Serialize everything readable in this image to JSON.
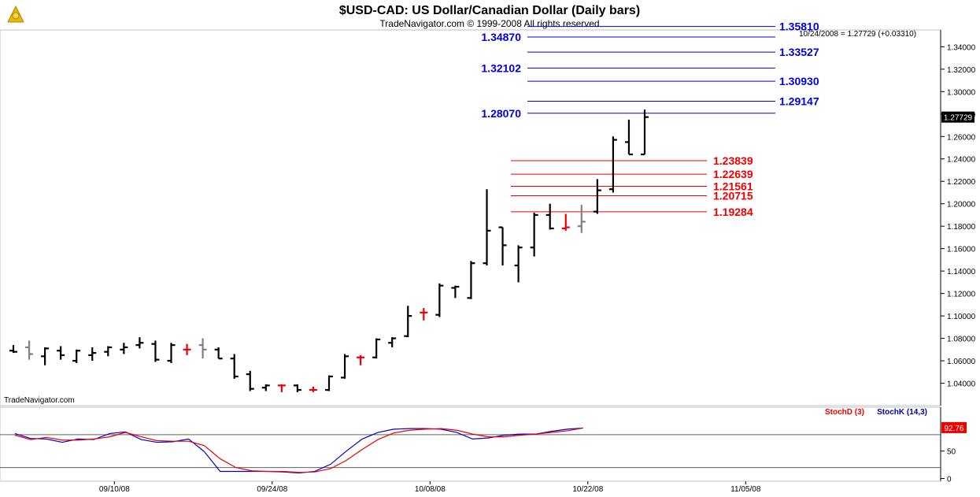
{
  "header": {
    "title": "$USD-CAD:  US Dollar/Canadian Dollar  (Daily bars)",
    "subtitle": "TradeNavigator.com © 1999-2008 All rights reserved",
    "last_bar_info": "10/24/2008 = 1.27729 (+0.03310)",
    "watermark": "TradeNavigator.com"
  },
  "colors": {
    "up_bar": "#000000",
    "down_bar": "#000000",
    "red_bar": "#ee0000",
    "gray_bar": "#808080",
    "resistance": "#0000dd",
    "support": "#ee0000",
    "stoch_k": "#0000cc",
    "stoch_d": "#ee0000"
  },
  "chart_data": [
    {
      "type": "ohlc",
      "title": "$USD-CAD:  US Dollar/Canadian Dollar  (Daily bars)",
      "ylim": [
        1.02,
        1.355
      ],
      "y_ticks": [
        "1.34000",
        "1.32000",
        "1.30000",
        "1.28000",
        "1.26000",
        "1.24000",
        "1.22000",
        "1.20000",
        "1.18000",
        "1.16000",
        "1.14000",
        "1.12000",
        "1.10000",
        "1.08000",
        "1.06000",
        "1.04000"
      ],
      "x_ticks": [
        "09/10/08",
        "09/24/08",
        "10/08/08",
        "10/22/08",
        "11/05/08"
      ],
      "last_price": "1.27729",
      "bars": [
        {
          "o": 1.069,
          "h": 1.074,
          "l": 1.067,
          "c": 1.068,
          "color": "black"
        },
        {
          "o": 1.072,
          "h": 1.078,
          "l": 1.061,
          "c": 1.066,
          "color": "gray"
        },
        {
          "o": 1.064,
          "h": 1.072,
          "l": 1.056,
          "c": 1.071,
          "color": "black"
        },
        {
          "o": 1.069,
          "h": 1.073,
          "l": 1.061,
          "c": 1.065,
          "color": "black"
        },
        {
          "o": 1.06,
          "h": 1.07,
          "l": 1.058,
          "c": 1.069,
          "color": "black"
        },
        {
          "o": 1.065,
          "h": 1.072,
          "l": 1.06,
          "c": 1.067,
          "color": "black"
        },
        {
          "o": 1.068,
          "h": 1.073,
          "l": 1.064,
          "c": 1.072,
          "color": "black"
        },
        {
          "o": 1.07,
          "h": 1.076,
          "l": 1.066,
          "c": 1.072,
          "color": "black"
        },
        {
          "o": 1.074,
          "h": 1.081,
          "l": 1.071,
          "c": 1.076,
          "color": "black"
        },
        {
          "o": 1.075,
          "h": 1.078,
          "l": 1.059,
          "c": 1.061,
          "color": "black"
        },
        {
          "o": 1.06,
          "h": 1.076,
          "l": 1.058,
          "c": 1.074,
          "color": "black"
        },
        {
          "o": 1.07,
          "h": 1.075,
          "l": 1.065,
          "c": 1.07,
          "color": "red"
        },
        {
          "o": 1.074,
          "h": 1.08,
          "l": 1.062,
          "c": 1.07,
          "color": "gray"
        },
        {
          "o": 1.07,
          "h": 1.072,
          "l": 1.062,
          "c": 1.062,
          "color": "black"
        },
        {
          "o": 1.062,
          "h": 1.066,
          "l": 1.044,
          "c": 1.046,
          "color": "black"
        },
        {
          "o": 1.048,
          "h": 1.051,
          "l": 1.033,
          "c": 1.035,
          "color": "black"
        },
        {
          "o": 1.036,
          "h": 1.039,
          "l": 1.033,
          "c": 1.038,
          "color": "black"
        },
        {
          "o": 1.038,
          "h": 1.039,
          "l": 1.032,
          "c": 1.038,
          "color": "red"
        },
        {
          "o": 1.038,
          "h": 1.039,
          "l": 1.032,
          "c": 1.034,
          "color": "black"
        },
        {
          "o": 1.034,
          "h": 1.037,
          "l": 1.032,
          "c": 1.034,
          "color": "red"
        },
        {
          "o": 1.034,
          "h": 1.047,
          "l": 1.033,
          "c": 1.046,
          "color": "black"
        },
        {
          "o": 1.045,
          "h": 1.066,
          "l": 1.044,
          "c": 1.064,
          "color": "black"
        },
        {
          "o": 1.063,
          "h": 1.065,
          "l": 1.056,
          "c": 1.063,
          "color": "red"
        },
        {
          "o": 1.063,
          "h": 1.08,
          "l": 1.062,
          "c": 1.079,
          "color": "black"
        },
        {
          "o": 1.076,
          "h": 1.081,
          "l": 1.072,
          "c": 1.08,
          "color": "black"
        },
        {
          "o": 1.082,
          "h": 1.109,
          "l": 1.081,
          "c": 1.1,
          "color": "black"
        },
        {
          "o": 1.103,
          "h": 1.107,
          "l": 1.096,
          "c": 1.103,
          "color": "red"
        },
        {
          "o": 1.101,
          "h": 1.129,
          "l": 1.099,
          "c": 1.127,
          "color": "black"
        },
        {
          "o": 1.125,
          "h": 1.127,
          "l": 1.116,
          "c": 1.126,
          "color": "black"
        },
        {
          "o": 1.116,
          "h": 1.149,
          "l": 1.115,
          "c": 1.147,
          "color": "black"
        },
        {
          "o": 1.147,
          "h": 1.213,
          "l": 1.145,
          "c": 1.176,
          "color": "black"
        },
        {
          "o": 1.179,
          "h": 1.179,
          "l": 1.145,
          "c": 1.163,
          "color": "black"
        },
        {
          "o": 1.145,
          "h": 1.163,
          "l": 1.13,
          "c": 1.161,
          "color": "black"
        },
        {
          "o": 1.161,
          "h": 1.192,
          "l": 1.153,
          "c": 1.19,
          "color": "black"
        },
        {
          "o": 1.19,
          "h": 1.2,
          "l": 1.177,
          "c": 1.178,
          "color": "black"
        },
        {
          "o": 1.178,
          "h": 1.191,
          "l": 1.176,
          "c": 1.179,
          "color": "red"
        },
        {
          "o": 1.18,
          "h": 1.199,
          "l": 1.174,
          "c": 1.184,
          "color": "gray"
        },
        {
          "o": 1.193,
          "h": 1.222,
          "l": 1.191,
          "c": 1.212,
          "color": "black"
        },
        {
          "o": 1.213,
          "h": 1.26,
          "l": 1.21,
          "c": 1.257,
          "color": "black"
        },
        {
          "o": 1.255,
          "h": 1.275,
          "l": 1.244,
          "c": 1.244,
          "color": "black"
        },
        {
          "o": 1.244,
          "h": 1.284,
          "l": 1.244,
          "c": 1.2773,
          "color": "black"
        }
      ],
      "resistance_levels": [
        {
          "value": 1.3581,
          "label": "1.35810",
          "side": "right"
        },
        {
          "value": 1.3487,
          "label": "1.34870",
          "side": "left"
        },
        {
          "value": 1.33527,
          "label": "1.33527",
          "side": "right"
        },
        {
          "value": 1.32102,
          "label": "1.32102",
          "side": "left"
        },
        {
          "value": 1.3093,
          "label": "1.30930",
          "side": "right"
        },
        {
          "value": 1.29147,
          "label": "1.29147",
          "side": "right"
        },
        {
          "value": 1.2807,
          "label": "1.28070",
          "side": "left"
        }
      ],
      "support_levels": [
        {
          "value": 1.23839,
          "label": "1.23839"
        },
        {
          "value": 1.22639,
          "label": "1.22639"
        },
        {
          "value": 1.21561,
          "label": "1.21561"
        },
        {
          "value": 1.20715,
          "label": "1.20715"
        },
        {
          "value": 1.19284,
          "label": "1.19284"
        }
      ]
    },
    {
      "type": "line",
      "title": "",
      "legend": [
        "StochD (3)",
        "StochK (14,3)"
      ],
      "ylim": [
        -5,
        130
      ],
      "y_ticks": [
        "50",
        "0"
      ],
      "ref_lines": [
        80,
        20
      ],
      "last_value": "92.76",
      "series": [
        {
          "name": "StochK (14,3)",
          "values": [
            82,
            73,
            72,
            66,
            72,
            71,
            82,
            85,
            71,
            66,
            67,
            72,
            49,
            13,
            13,
            13,
            13,
            12,
            10,
            13,
            26,
            50,
            72,
            84,
            90,
            91,
            91,
            90,
            84,
            72,
            74,
            79,
            81,
            81,
            86,
            90,
            92
          ]
        },
        {
          "name": "StochD (3)",
          "values": [
            79,
            71,
            75,
            70,
            70,
            72,
            76,
            84,
            76,
            69,
            68,
            68,
            60,
            36,
            20,
            14,
            13,
            13,
            11,
            12,
            18,
            33,
            53,
            71,
            83,
            88,
            90,
            91,
            88,
            81,
            76,
            76,
            79,
            81,
            84,
            87,
            92
          ]
        }
      ]
    }
  ]
}
